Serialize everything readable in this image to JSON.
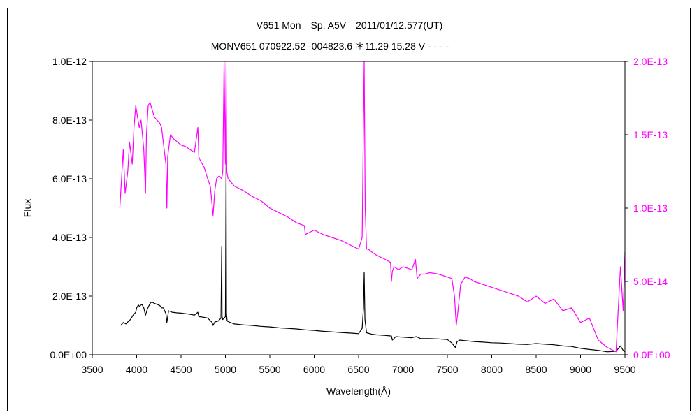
{
  "chart_data": {
    "type": "line",
    "title": "V651 Mon　Sp. A5V　2011/01/12.577(UT)",
    "subtitle": "MONV651 070922.52 -004823.6 ＊11.29 15.28 V - - - -",
    "xlabel": "Wavelength(Å)",
    "ylabel": "Flux",
    "xlim": [
      3500,
      9500
    ],
    "ylim": [
      0,
      1e-12
    ],
    "y2lim": [
      0,
      2e-13
    ],
    "xticks": [
      3500,
      4000,
      4500,
      5000,
      5500,
      6000,
      6500,
      7000,
      7500,
      8000,
      8500,
      9000,
      9500
    ],
    "xtick_labels": [
      "3500",
      "4000",
      "4500",
      "5000",
      "5500",
      "6000",
      "6500",
      "7000",
      "7500",
      "8000",
      "8500",
      "9000",
      "9500"
    ],
    "yticks": [
      0,
      2e-13,
      4e-13,
      6e-13,
      8e-13,
      1e-12
    ],
    "ytick_labels": [
      "0.0E+00",
      "2.0E-13",
      "4.0E-13",
      "6.0E-13",
      "8.0E-13",
      "1.0E-12"
    ],
    "y2ticks": [
      0,
      5e-14,
      1e-13,
      1.5e-13,
      2e-13
    ],
    "y2tick_labels": [
      "0.0E+00",
      "5.0E-14",
      "1.0E-13",
      "1.5E-13",
      "2.0E-13"
    ],
    "grid": false,
    "colors": {
      "left_axis": "#000000",
      "right_axis": "#ff00ff"
    },
    "series": [
      {
        "axis": "left",
        "color": "#000000",
        "x": [
          3820,
          3850,
          3880,
          3900,
          3930,
          3960,
          3990,
          4000,
          4020,
          4030,
          4060,
          4080,
          4100,
          4120,
          4150,
          4170,
          4200,
          4230,
          4260,
          4280,
          4300,
          4330,
          4340,
          4360,
          4400,
          4450,
          4500,
          4550,
          4600,
          4650,
          4690,
          4700,
          4750,
          4800,
          4850,
          4861,
          4880,
          4920,
          4950,
          4958,
          4962,
          4970,
          5000,
          5007,
          5012,
          5020,
          5040,
          5100,
          5200,
          5300,
          5400,
          5500,
          5600,
          5700,
          5800,
          5900,
          6000,
          6100,
          6200,
          6300,
          6400,
          6500,
          6540,
          6555,
          6563,
          6572,
          6590,
          6650,
          6700,
          6800,
          6870,
          6880,
          6920,
          7000,
          7100,
          7150,
          7200,
          7300,
          7400,
          7500,
          7550,
          7590,
          7610,
          7640,
          7700,
          7800,
          7900,
          8000,
          8100,
          8200,
          8300,
          8400,
          8500,
          8600,
          8700,
          8800,
          8900,
          9000,
          9100,
          9200,
          9300,
          9400,
          9450,
          9480,
          9500
        ],
        "y": [
          1e-13,
          1.1e-13,
          1.05e-13,
          1.12e-13,
          1.2e-13,
          1.35e-13,
          1.45e-13,
          1.6e-13,
          1.7e-13,
          1.65e-13,
          1.72e-13,
          1.6e-13,
          1.35e-13,
          1.55e-13,
          1.75e-13,
          1.8e-13,
          1.75e-13,
          1.72e-13,
          1.68e-13,
          1.6e-13,
          1.6e-13,
          1.4e-13,
          1.1e-13,
          1.5e-13,
          1.45e-13,
          1.43e-13,
          1.42e-13,
          1.4e-13,
          1.38e-13,
          1.35e-13,
          1.45e-13,
          1.3e-13,
          1.28e-13,
          1.25e-13,
          1.1e-13,
          1e-13,
          1.12e-13,
          1.15e-13,
          1.25e-13,
          3.7e-13,
          1.3e-13,
          1.2e-13,
          1.3e-13,
          6.5e-13,
          1.4e-13,
          1.15e-13,
          1.12e-13,
          1.05e-13,
          1.02e-13,
          1e-13,
          9.7e-14,
          9.5e-14,
          9.2e-14,
          9e-14,
          8.8e-14,
          8.5e-14,
          8.3e-14,
          8e-14,
          7.8e-14,
          7.6e-14,
          7.4e-14,
          7.2e-14,
          9e-14,
          1.6e-13,
          2.8e-13,
          1.2e-13,
          7.5e-14,
          7e-14,
          6.8e-14,
          6.6e-14,
          6.4e-14,
          5e-14,
          6.2e-14,
          6e-14,
          5.8e-14,
          6.2e-14,
          5.5e-14,
          5.5e-14,
          5.4e-14,
          5.2e-14,
          4e-14,
          2.5e-14,
          4.5e-14,
          5e-14,
          4.8e-14,
          4.5e-14,
          4.3e-14,
          4.1e-14,
          4e-14,
          3.8e-14,
          3.6e-14,
          3.5e-14,
          3.8e-14,
          3.6e-14,
          3.4e-14,
          3e-14,
          2.8e-14,
          2.2e-14,
          1.8e-14,
          1.5e-14,
          1e-14,
          1.2e-14,
          3e-14,
          1.5e-14,
          1e-14
        ]
      },
      {
        "axis": "right",
        "color": "#ff00ff",
        "x": [
          3810,
          3830,
          3850,
          3870,
          3900,
          3920,
          3950,
          3970,
          3990,
          4010,
          4030,
          4050,
          4080,
          4100,
          4110,
          4130,
          4150,
          4170,
          4200,
          4230,
          4260,
          4280,
          4300,
          4330,
          4340,
          4350,
          4380,
          4420,
          4460,
          4500,
          4550,
          4600,
          4650,
          4690,
          4700,
          4720,
          4760,
          4800,
          4830,
          4861,
          4880,
          4900,
          4930,
          4958,
          4970,
          4985,
          5000,
          5007,
          5015,
          5030,
          5060,
          5100,
          5200,
          5300,
          5400,
          5500,
          5600,
          5700,
          5800,
          5890,
          5900,
          6000,
          6100,
          6200,
          6300,
          6400,
          6500,
          6540,
          6555,
          6563,
          6575,
          6590,
          6610,
          6650,
          6700,
          6800,
          6860,
          6870,
          6880,
          6900,
          6950,
          7000,
          7100,
          7140,
          7160,
          7200,
          7250,
          7300,
          7400,
          7500,
          7550,
          7580,
          7600,
          7620,
          7650,
          7700,
          7750,
          7800,
          7900,
          8000,
          8100,
          8200,
          8300,
          8400,
          8500,
          8600,
          8700,
          8800,
          8900,
          9000,
          9100,
          9200,
          9300,
          9400,
          9450,
          9480,
          9500
        ],
        "y": [
          1e-13,
          1.2e-13,
          1.4e-13,
          1.1e-13,
          1.25e-13,
          1.45e-13,
          1.3e-13,
          1.55e-13,
          1.7e-13,
          1.62e-13,
          1.55e-13,
          1.6e-13,
          1.4e-13,
          1.1e-13,
          1.5e-13,
          1.7e-13,
          1.72e-13,
          1.68e-13,
          1.62e-13,
          1.6e-13,
          1.58e-13,
          1.55e-13,
          1.45e-13,
          1.3e-13,
          1e-13,
          1.35e-13,
          1.5e-13,
          1.47e-13,
          1.45e-13,
          1.43e-13,
          1.42e-13,
          1.4e-13,
          1.38e-13,
          1.55e-13,
          1.35e-13,
          1.32e-13,
          1.28e-13,
          1.2e-13,
          1.15e-13,
          9.5e-14,
          1.12e-13,
          1.2e-13,
          1.22e-13,
          1.2e-13,
          1.25e-13,
          2e-13,
          1.3e-13,
          2e-13,
          1.25e-13,
          1.2e-13,
          1.18e-13,
          1.15e-13,
          1.12e-13,
          1.08e-13,
          1.05e-13,
          1e-13,
          9.7e-14,
          9.4e-14,
          9e-14,
          8.8e-14,
          8.2e-14,
          8.5e-14,
          8.2e-14,
          8e-14,
          7.8e-14,
          7.5e-14,
          7.2e-14,
          8e-14,
          1.6e-13,
          2e-13,
          1e-13,
          7.2e-14,
          7.2e-14,
          7e-14,
          6.8e-14,
          6.5e-14,
          6.3e-14,
          5e-14,
          5.7e-14,
          6e-14,
          5.8e-14,
          6e-14,
          5.8e-14,
          6.5e-14,
          5.2e-14,
          5.5e-14,
          5.5e-14,
          5.6e-14,
          5.5e-14,
          5.3e-14,
          5.2e-14,
          4e-14,
          2e-14,
          3e-14,
          4.8e-14,
          5.3e-14,
          5.2e-14,
          5e-14,
          4.8e-14,
          4.6e-14,
          4.4e-14,
          4.2e-14,
          4e-14,
          3.6e-14,
          4e-14,
          3.5e-14,
          3.8e-14,
          3e-14,
          3.2e-14,
          2.2e-14,
          2.5e-14,
          1e-14,
          5e-15,
          2e-15,
          6e-14,
          3e-14,
          7e-14
        ]
      }
    ]
  }
}
